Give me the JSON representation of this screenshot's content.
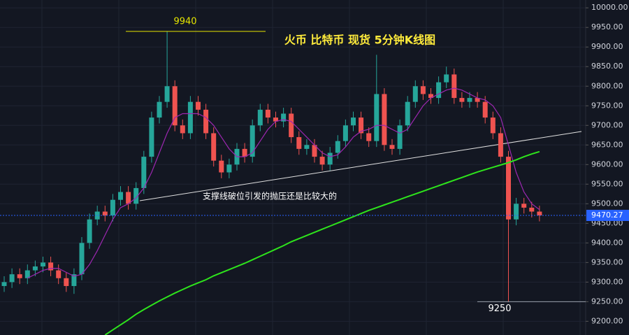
{
  "chart_data": {
    "type": "candlestick",
    "title": "火币 比特币 现货 5分钟K线图",
    "annotation": "支撑线破位引发的抛压还是比较大的",
    "up_color": "#26a69a",
    "down_color": "#ef5350",
    "open": [
      9290,
      9300,
      9320,
      9310,
      9330,
      9340,
      9350,
      9330,
      9310,
      9290,
      9320,
      9400,
      9460,
      9480,
      9470,
      9510,
      9530,
      9500,
      9540,
      9620,
      9720,
      9760,
      9800,
      9700,
      9680,
      9760,
      9740,
      9680,
      9610,
      9580,
      9600,
      9640,
      9620,
      9700,
      9740,
      9720,
      9710,
      9730,
      9670,
      9640,
      9650,
      9620,
      9600,
      9630,
      9660,
      9700,
      9720,
      9680,
      9660,
      9780,
      9650,
      9640,
      9700,
      9760,
      9800,
      9780,
      9770,
      9810,
      9830,
      9770,
      9760,
      9770,
      9760,
      9720,
      9680,
      9620,
      9460,
      9500,
      9490,
      9480
    ],
    "high": [
      9315,
      9335,
      9335,
      9345,
      9355,
      9365,
      9365,
      9345,
      9325,
      9335,
      9415,
      9475,
      9495,
      9495,
      9525,
      9545,
      9545,
      9555,
      9635,
      9735,
      9775,
      9940,
      9815,
      9715,
      9775,
      9775,
      9755,
      9695,
      9625,
      9615,
      9655,
      9655,
      9715,
      9755,
      9755,
      9735,
      9745,
      9745,
      9685,
      9665,
      9665,
      9635,
      9645,
      9675,
      9715,
      9735,
      9735,
      9695,
      9880,
      9795,
      9665,
      9715,
      9775,
      9815,
      9815,
      9795,
      9825,
      9850,
      9845,
      9785,
      9785,
      9785,
      9775,
      9735,
      9695,
      9635,
      9515,
      9515,
      9505,
      9495
    ],
    "low": [
      9275,
      9285,
      9295,
      9295,
      9315,
      9325,
      9315,
      9295,
      9275,
      9270,
      9305,
      9385,
      9445,
      9455,
      9455,
      9495,
      9485,
      9485,
      9525,
      9605,
      9705,
      9745,
      9685,
      9665,
      9665,
      9725,
      9665,
      9595,
      9565,
      9565,
      9585,
      9605,
      9605,
      9685,
      9705,
      9695,
      9695,
      9655,
      9625,
      9625,
      9605,
      9585,
      9585,
      9615,
      9645,
      9685,
      9665,
      9645,
      9645,
      9635,
      9625,
      9625,
      9685,
      9745,
      9765,
      9755,
      9755,
      9795,
      9755,
      9745,
      9745,
      9745,
      9705,
      9665,
      9605,
      9250,
      9445,
      9475,
      9465,
      9455
    ],
    "close": [
      9300,
      9320,
      9310,
      9330,
      9340,
      9350,
      9330,
      9310,
      9290,
      9320,
      9400,
      9460,
      9480,
      9470,
      9510,
      9530,
      9500,
      9540,
      9620,
      9720,
      9760,
      9800,
      9700,
      9680,
      9760,
      9740,
      9680,
      9610,
      9580,
      9600,
      9640,
      9620,
      9700,
      9740,
      9720,
      9710,
      9730,
      9670,
      9640,
      9650,
      9620,
      9600,
      9630,
      9660,
      9700,
      9720,
      9680,
      9660,
      9780,
      9650,
      9640,
      9700,
      9760,
      9800,
      9780,
      9770,
      9810,
      9830,
      9770,
      9760,
      9770,
      9760,
      9720,
      9680,
      9620,
      9460,
      9500,
      9490,
      9480,
      9470.27
    ],
    "lines": [
      {
        "color": "#9c27b0",
        "values": [
          null,
          null,
          null,
          9310,
          9320,
          9330,
          9335,
          9335,
          9325,
          9315,
          9320,
          9345,
          9380,
          9420,
          9460,
          9490,
          9500,
          9515,
          9540,
          9580,
          9630,
          9680,
          9720,
          9730,
          9730,
          9730,
          9720,
          9700,
          9670,
          9640,
          9620,
          9620,
          9630,
          9660,
          9690,
          9710,
          9715,
          9710,
          9690,
          9670,
          9650,
          9630,
          9620,
          9625,
          9645,
          9670,
          9685,
          9690,
          9700,
          9700,
          9690,
          9680,
          9690,
          9720,
          9750,
          9770,
          9780,
          9790,
          9795,
          9790,
          9780,
          9770,
          9765,
          9750,
          9720,
          9650,
          9580,
          9530,
          9500,
          9485
        ]
      },
      {
        "color": "#2ee41c",
        "values": [
          null,
          null,
          null,
          null,
          null,
          null,
          null,
          null,
          null,
          null,
          null,
          null,
          null,
          9165,
          9178,
          9191,
          9204,
          9218,
          9230,
          9241,
          9252,
          9262,
          9272,
          9281,
          9290,
          9298,
          9306,
          9316,
          9324,
          9332,
          9340,
          9348,
          9357,
          9366,
          9375,
          9384,
          9393,
          9403,
          9411,
          9419,
          9427,
          9435,
          9443,
          9451,
          9459,
          9467,
          9475,
          9483,
          9490,
          9497,
          9504,
          9511,
          9518,
          9525,
          9532,
          9539,
          9546,
          9553,
          9560,
          9567,
          9574,
          9581,
          9587,
          9593,
          9599,
          9605,
          9612,
          9620,
          9627,
          9633
        ]
      }
    ],
    "levels": [
      9940,
      9250
    ],
    "level_colors": [
      "#e6e600",
      "#9aa0ad"
    ],
    "ylim": [
      9165,
      10020
    ],
    "yticks": [
      {
        "value": 9200,
        "label": "9200.00"
      },
      {
        "value": 9250,
        "label": "9250.00"
      },
      {
        "value": 9300,
        "label": "9300.00"
      },
      {
        "value": 9350,
        "label": "9350.00"
      },
      {
        "value": 9400,
        "label": "9400.00"
      },
      {
        "value": 9450,
        "label": "9450.00"
      },
      {
        "value": 9500,
        "label": "9500.00"
      },
      {
        "value": 9550,
        "label": "9550.00"
      },
      {
        "value": 9600,
        "label": "9600.00"
      },
      {
        "value": 9650,
        "label": "9650.00"
      },
      {
        "value": 9700,
        "label": "9700.00"
      },
      {
        "value": 9750,
        "label": "9750.00"
      },
      {
        "value": 9800,
        "label": "9800.00"
      },
      {
        "value": 9850,
        "label": "9850.00"
      },
      {
        "value": 9900,
        "label": "9900.00"
      },
      {
        "value": 9950,
        "label": "9950.00"
      },
      {
        "value": 10000,
        "label": "10000.00"
      }
    ],
    "grid": true
  }
}
